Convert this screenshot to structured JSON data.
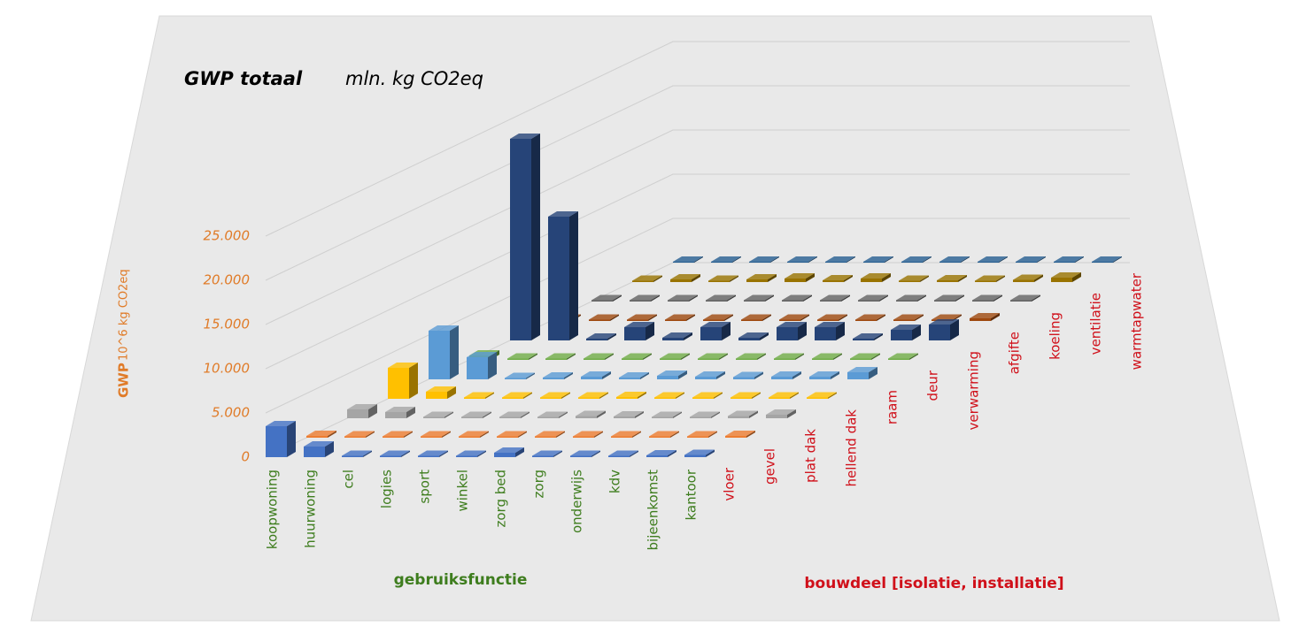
{
  "chart_data": {
    "type": "bar3d",
    "title": "GWP totaal",
    "subtitle": "mln. kg CO2eq",
    "y_label": "GWP",
    "y_unit": "10^6 kg CO2eq",
    "x_label": "gebruiksfunctie",
    "z_label": "bouwdeel [isolatie, installatie]",
    "categories": [
      "koopwoning",
      "huurwoning",
      "cel",
      "logies",
      "sport",
      "winkel",
      "zorg bed",
      "zorg",
      "onderwijs",
      "kdv",
      "bijeenkomst",
      "kantoor"
    ],
    "ylim": [
      0,
      25000
    ],
    "yticks": [
      {
        "value": 0,
        "label": "0"
      },
      {
        "value": 5000,
        "label": "5.000"
      },
      {
        "value": 10000,
        "label": "10.000"
      },
      {
        "value": 15000,
        "label": "15.000"
      },
      {
        "value": 20000,
        "label": "20.000"
      },
      {
        "value": 25000,
        "label": "25.000"
      }
    ],
    "grid": true,
    "series": [
      {
        "name": "vloer",
        "color": "#4472c4",
        "values": [
          3500,
          1200,
          150,
          150,
          150,
          150,
          500,
          150,
          150,
          150,
          200,
          250
        ]
      },
      {
        "name": "gevel",
        "color": "#ed7d31",
        "values": [
          200,
          150,
          150,
          150,
          150,
          150,
          150,
          150,
          150,
          150,
          150,
          200
        ]
      },
      {
        "name": "plat dak",
        "color": "#a5a5a5",
        "values": [
          1000,
          700,
          150,
          150,
          150,
          150,
          250,
          200,
          150,
          150,
          250,
          400
        ]
      },
      {
        "name": "hellend dak",
        "color": "#ffc000",
        "values": [
          3500,
          800,
          150,
          150,
          150,
          150,
          200,
          150,
          150,
          150,
          150,
          150
        ]
      },
      {
        "name": "raam",
        "color": "#5b9bd5",
        "values": [
          5500,
          2500,
          150,
          200,
          300,
          200,
          400,
          300,
          250,
          300,
          300,
          800
        ]
      },
      {
        "name": "deur",
        "color": "#70ad47",
        "values": [
          500,
          150,
          150,
          150,
          150,
          150,
          150,
          150,
          150,
          150,
          150,
          150
        ]
      },
      {
        "name": "verwarming",
        "color": "#264478",
        "values": [
          22800,
          14000,
          200,
          1500,
          300,
          1500,
          300,
          1500,
          1500,
          200,
          1200,
          1800
        ]
      },
      {
        "name": "afgifte",
        "color": "#9e480e",
        "values": [
          150,
          150,
          150,
          150,
          150,
          150,
          150,
          150,
          150,
          150,
          150,
          300
        ]
      },
      {
        "name": "koeling",
        "color": "#636363",
        "values": [
          150,
          150,
          150,
          150,
          150,
          150,
          150,
          150,
          150,
          150,
          150,
          150
        ]
      },
      {
        "name": "ventilatie",
        "color": "#997300",
        "values": [
          150,
          300,
          150,
          300,
          400,
          200,
          400,
          150,
          200,
          150,
          250,
          500
        ]
      },
      {
        "name": "warmtapwater",
        "color": "#255e91",
        "values": [
          100,
          100,
          100,
          100,
          100,
          100,
          100,
          100,
          100,
          100,
          100,
          100
        ]
      }
    ]
  }
}
